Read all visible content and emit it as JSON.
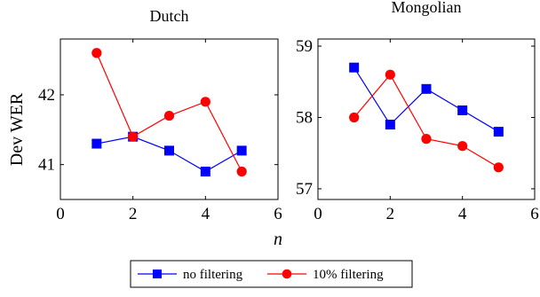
{
  "chart_data": [
    {
      "type": "line",
      "title": "Dutch",
      "xlabel": "",
      "ylabel": "Dev WER",
      "xlim": [
        0,
        6
      ],
      "ylim": [
        40.5,
        42.8
      ],
      "xticks": [
        "0",
        "2",
        "4",
        "6"
      ],
      "yticks": [
        "41",
        "42"
      ],
      "x": [
        1,
        2,
        3,
        4,
        5
      ],
      "grid": false,
      "series": [
        {
          "name": "no filtering",
          "color": "#0000ff",
          "marker": "square",
          "values": [
            41.3,
            41.4,
            41.2,
            40.9,
            41.2
          ]
        },
        {
          "name": "10% filtering",
          "color": "#ff0000",
          "marker": "circle",
          "values": [
            42.6,
            41.4,
            41.7,
            41.9,
            40.9
          ]
        }
      ]
    },
    {
      "type": "line",
      "title": "Mongolian",
      "xlabel": "",
      "ylabel": "",
      "xlim": [
        0,
        6
      ],
      "ylim": [
        56.85,
        59.1
      ],
      "xticks": [
        "0",
        "2",
        "4",
        "6"
      ],
      "yticks": [
        "57",
        "58",
        "59"
      ],
      "x": [
        1,
        2,
        3,
        4,
        5
      ],
      "grid": false,
      "series": [
        {
          "name": "no filtering",
          "color": "#0000ff",
          "marker": "square",
          "values": [
            58.7,
            57.9,
            58.4,
            58.1,
            57.8
          ]
        },
        {
          "name": "10% filtering",
          "color": "#ff0000",
          "marker": "circle",
          "values": [
            58.0,
            58.6,
            57.7,
            57.6,
            57.3
          ]
        }
      ]
    }
  ],
  "shared_xlabel": "n",
  "legend": {
    "placement": "bottom-center",
    "entries": [
      {
        "label": "no filtering",
        "color": "#0000ff",
        "marker": "square"
      },
      {
        "label": "10% filtering",
        "color": "#ff0000",
        "marker": "circle"
      }
    ]
  }
}
